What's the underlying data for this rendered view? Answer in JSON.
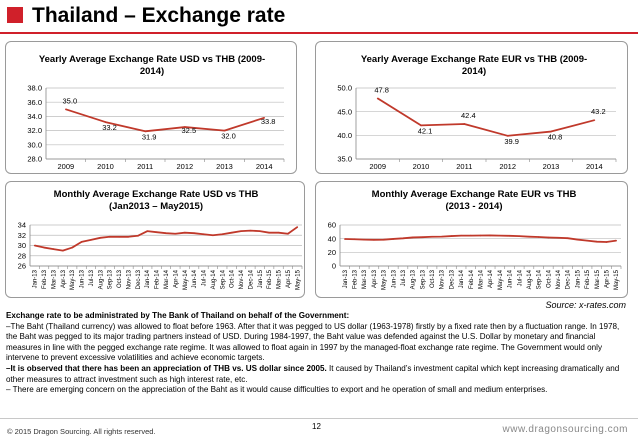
{
  "page": {
    "title": "Thailand – Exchange rate",
    "source": "Source: x-rates.com",
    "colors": {
      "accent": "#d0202a",
      "line": "#c0392b",
      "grid": "#bdbdbd"
    }
  },
  "chart_data": [
    {
      "type": "line",
      "title_lines": [
        "Yearly Average Exchange Rate USD vs THB (2009-",
        "2014)"
      ],
      "categories": [
        "2009",
        "2010",
        "2011",
        "2012",
        "2013",
        "2014"
      ],
      "values": [
        35.0,
        33.2,
        31.9,
        32.5,
        32.0,
        33.8
      ],
      "value_labels": [
        "35.0",
        "33.2",
        "31.9",
        "32.5",
        "32.0",
        "33.8"
      ],
      "ylim": [
        28.0,
        38.0
      ],
      "yticks": [
        "28.0",
        "30.0",
        "32.0",
        "34.0",
        "36.0",
        "38.0"
      ],
      "grid": true
    },
    {
      "type": "line",
      "title_lines": [
        "Yearly Average Exchange Rate EUR vs THB (2009-",
        "2014)"
      ],
      "categories": [
        "2009",
        "2010",
        "2011",
        "2012",
        "2013",
        "2014"
      ],
      "values": [
        47.8,
        42.1,
        42.4,
        39.9,
        40.8,
        43.2
      ],
      "value_labels": [
        "47.8",
        "42.1",
        "42.4",
        "39.9",
        "40.8",
        "43.2"
      ],
      "ylim": [
        35.0,
        50.0
      ],
      "yticks": [
        "35.0",
        "40.0",
        "45.0",
        "50.0"
      ],
      "grid": true
    },
    {
      "type": "line",
      "title_lines": [
        "Monthly Average Exchange Rate USD vs THB",
        "(Jan2013 – May2015)"
      ],
      "categories": [
        "Jan-13",
        "Feb-13",
        "Mar-13",
        "Apr-13",
        "May-13",
        "Jun-13",
        "Jul-13",
        "Aug-13",
        "Sep-13",
        "Oct-13",
        "Nov-13",
        "Dec-13",
        "Jan-14",
        "Feb-14",
        "Mar-14",
        "Apr-14",
        "May-14",
        "Jun-14",
        "Jul-14",
        "Aug-14",
        "Sep-14",
        "Oct-14",
        "Nov-14",
        "Dec-14",
        "Jan-15",
        "Feb-15",
        "Mar-15",
        "Apr-15",
        "May-15"
      ],
      "values": [
        30.0,
        29.6,
        29.3,
        29.0,
        29.6,
        30.7,
        31.1,
        31.5,
        31.7,
        31.7,
        31.7,
        31.9,
        32.8,
        32.6,
        32.4,
        32.3,
        32.5,
        32.4,
        32.2,
        32.0,
        32.2,
        32.5,
        32.8,
        32.9,
        32.8,
        32.5,
        32.5,
        32.3,
        33.6
      ],
      "ylim": [
        26,
        34
      ],
      "yticks": [
        "26",
        "28",
        "30",
        "32",
        "34"
      ],
      "grid": true
    },
    {
      "type": "line",
      "title_lines": [
        "Monthly Average Exchange Rate EUR vs THB",
        "(2013 - 2014)"
      ],
      "categories": [
        "Jan-13",
        "Feb-13",
        "Mar-13",
        "Apr-13",
        "May-13",
        "Jun-13",
        "Jul-13",
        "Aug-13",
        "Sep-13",
        "Oct-13",
        "Nov-13",
        "Dec-13",
        "Jan-14",
        "Feb-14",
        "Mar-14",
        "Apr-14",
        "May-14",
        "Jun-14",
        "Jul-14",
        "Aug-14",
        "Sep-14",
        "Oct-14",
        "Nov-14",
        "Dec-14",
        "Jan-15",
        "Feb-15",
        "Mar-15",
        "Apr-15",
        "May-15"
      ],
      "values": [
        39.5,
        39.2,
        38.6,
        38.3,
        38.5,
        39.6,
        40.5,
        41.8,
        42.2,
        42.8,
        43.0,
        43.8,
        44.4,
        44.5,
        44.6,
        44.7,
        44.4,
        44.2,
        43.7,
        42.9,
        42.4,
        41.7,
        41.3,
        40.7,
        38.7,
        37.1,
        35.6,
        35.1,
        37.1
      ],
      "ylim": [
        0,
        60
      ],
      "yticks": [
        "0",
        "20",
        "40",
        "60"
      ],
      "grid": true
    }
  ],
  "text": {
    "heading": "Exchange rate to be administrated by The Bank of Thailand on behalf of the Government:",
    "para1": "–The Baht (Thailand currency) was allowed to float before 1963. After that it was pegged to US dollar (1963-1978) firstly by a fixed rate then by a fluctuation range. In 1978, the Baht was pegged to its major trading partners instead of USD. During 1984-1997, the Baht value was defended against the U.S. Dollar by monetary and financial measures in line with the pegged exchange rate regime. It was allowed to float again in 1997 by the managed-float exchange rate regime. The Government would only intervene to prevent excessive volatilities and achieve economic targets.",
    "para2_bold": "–It is observed that there has been an appreciation of THB vs. US dollar since 2005.",
    "para2_rest": " It caused by Thailand’s investment capital which kept increasing dramatically and other measures to attract investment such as high interest rate, etc.",
    "para3": "– There are emerging concern on the appreciation of the Baht as it would cause difficulties to export and he operation of small and medium enterprises."
  },
  "footer": {
    "copyright": "© 2015 Dragon Sourcing. All rights reserved.",
    "page_number": "12",
    "website": "www.dragonsourcing.com"
  }
}
